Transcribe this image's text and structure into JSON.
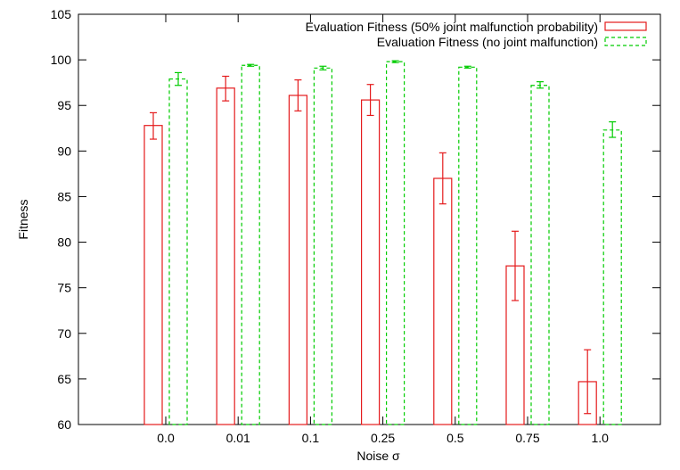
{
  "chart_data": {
    "type": "bar",
    "title": "",
    "xlabel": "Noise σ",
    "ylabel": "Fitness",
    "ylim": [
      60,
      105
    ],
    "yticks": [
      60,
      65,
      70,
      75,
      80,
      85,
      90,
      95,
      100,
      105
    ],
    "categories": [
      "0.0",
      "0.01",
      "0.1",
      "0.25",
      "0.5",
      "0.75",
      "1.0"
    ],
    "grid": false,
    "legend_position": "top-right",
    "error_bars": true,
    "series": [
      {
        "name": "Evaluation Fitness (50% joint malfunction probability)",
        "color": "#e41a1c",
        "line_style": "solid",
        "values": [
          92.8,
          96.9,
          96.1,
          95.6,
          87.0,
          77.4,
          64.7
        ],
        "err_low": [
          91.3,
          95.5,
          94.4,
          93.9,
          84.2,
          73.6,
          61.2
        ],
        "err_high": [
          94.2,
          98.2,
          97.8,
          97.3,
          89.8,
          81.2,
          68.2
        ]
      },
      {
        "name": "Evaluation Fitness (no joint malfunction)",
        "color": "#00cc00",
        "line_style": "dashed",
        "values": [
          97.9,
          99.4,
          99.1,
          99.8,
          99.2,
          97.2,
          92.3
        ],
        "err_low": [
          97.2,
          99.3,
          98.9,
          99.7,
          99.1,
          96.9,
          91.5
        ],
        "err_high": [
          98.6,
          99.5,
          99.3,
          99.9,
          99.3,
          97.6,
          93.2
        ]
      }
    ]
  }
}
